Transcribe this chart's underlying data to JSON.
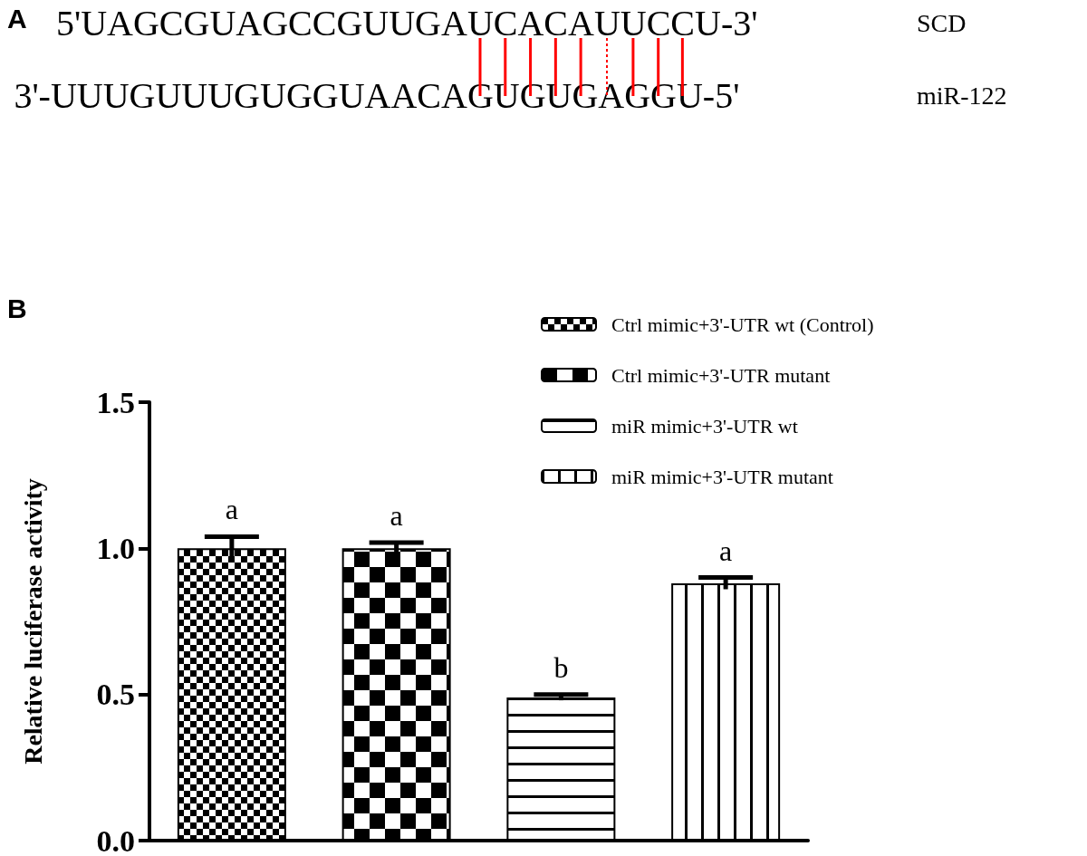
{
  "chart_data": [
    {
      "type": "other",
      "title": "A",
      "annotations": [
        "5'UAGCGUAGCCGUUGAUCACAUUCCU-3'",
        "SCD",
        "3'-UUUGUUUGUGGUAACAGUGUGAGGU-5'",
        "miR-122"
      ]
    },
    {
      "type": "bar",
      "title": "B",
      "ylabel": "Relative luciferase activity",
      "categories": [
        null,
        null,
        null,
        null
      ],
      "series": [
        {
          "name": "Ctrl mimic+3'-UTR wt (Control)",
          "color": "#000000",
          "values": [
            1.0,
            null,
            null,
            null
          ],
          "errors": [
            0.04,
            null,
            null,
            null
          ]
        },
        {
          "name": "Ctrl mimic+3'-UTR mutant",
          "color": "#000000",
          "values": [
            null,
            1.0,
            null,
            null
          ],
          "errors": [
            null,
            0.02,
            null,
            null
          ]
        },
        {
          "name": "miR mimic+3'-UTR wt",
          "color": "#000000",
          "values": [
            null,
            null,
            0.49,
            null
          ],
          "errors": [
            null,
            null,
            0.01,
            null
          ]
        },
        {
          "name": "miR mimic+3'-UTR mutant",
          "color": "#000000",
          "values": [
            null,
            null,
            null,
            0.88
          ],
          "errors": [
            null,
            null,
            null,
            0.02
          ]
        }
      ],
      "annotations": [
        "a",
        "a",
        "b",
        "a"
      ],
      "ylim": [
        0,
        1.5
      ],
      "yticks": [
        {
          "value": 0,
          "label": "0.0"
        },
        {
          "value": 0.5,
          "label": "0.5"
        },
        {
          "value": 1,
          "label": "1.0"
        },
        {
          "value": 1.5,
          "label": "1.5"
        }
      ],
      "grid": false,
      "legend": "top right"
    }
  ]
}
